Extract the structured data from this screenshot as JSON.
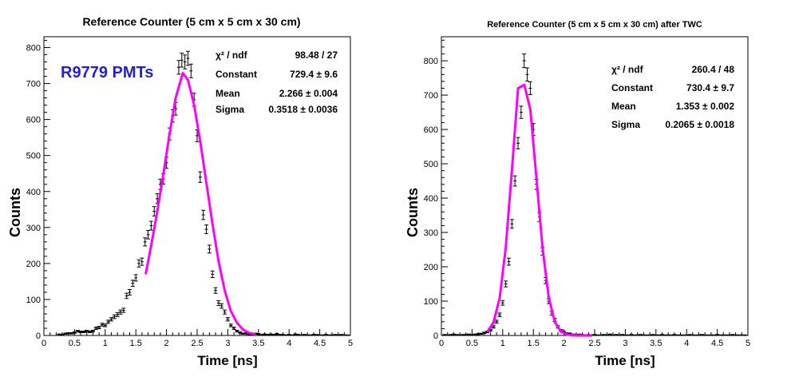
{
  "chart_data": [
    {
      "type": "scatter",
      "title": "Reference Counter (5 cm x 5 cm x 30 cm)",
      "annotation": "R9779 PMTs",
      "annotation_color": "#1f1fd6",
      "xlabel": "Time [ns]",
      "ylabel": "Counts",
      "xlim": [
        0,
        5
      ],
      "ylim": [
        0,
        830
      ],
      "x_ticks": [
        0,
        0.5,
        1,
        1.5,
        2,
        2.5,
        3,
        3.5,
        4,
        4.5,
        5
      ],
      "x_tick_labels": [
        "0",
        "0.5",
        "1",
        "1.5",
        "2",
        "2.5",
        "3",
        "3.5",
        "4",
        "4.5",
        "5"
      ],
      "y_ticks": [
        0,
        100,
        200,
        300,
        400,
        500,
        600,
        700,
        800
      ],
      "y_tick_labels": [
        "0",
        "100",
        "200",
        "300",
        "400",
        "500",
        "600",
        "700",
        "800"
      ],
      "stats": [
        {
          "label": "χ² / ndf",
          "value": "98.48 / 27"
        },
        {
          "label": "Constant",
          "value": "729.4 ± 9.6"
        },
        {
          "label": "Mean",
          "value": "2.266 ± 0.004"
        },
        {
          "label": "Sigma",
          "value": "0.3518 ± 0.0036"
        }
      ],
      "series": [
        {
          "kind": "histogram-points",
          "color": "#000000",
          "x": [
            0.25,
            0.3,
            0.35,
            0.4,
            0.45,
            0.5,
            0.55,
            0.6,
            0.65,
            0.7,
            0.75,
            0.8,
            0.85,
            0.9,
            0.95,
            1.0,
            1.05,
            1.1,
            1.15,
            1.2,
            1.25,
            1.3,
            1.35,
            1.4,
            1.45,
            1.5,
            1.55,
            1.6,
            1.65,
            1.7,
            1.75,
            1.8,
            1.85,
            1.9,
            1.95,
            2.0,
            2.05,
            2.1,
            2.15,
            2.2,
            2.25,
            2.3,
            2.35,
            2.4,
            2.45,
            2.5,
            2.55,
            2.6,
            2.65,
            2.7,
            2.75,
            2.8,
            2.85,
            2.9,
            2.95,
            3.0,
            3.05,
            3.1,
            3.15,
            3.2,
            3.25,
            3.3,
            3.35,
            3.4,
            3.45,
            3.5,
            3.55,
            3.6,
            3.65,
            3.7,
            3.75,
            3.8,
            3.85,
            3.9,
            3.95,
            4.0,
            4.05,
            4.1,
            4.15,
            4.2,
            4.25,
            4.3,
            4.35,
            4.4,
            4.45,
            4.5,
            4.55,
            4.6,
            4.65,
            4.7,
            4.75,
            4.8,
            4.85,
            4.9,
            4.95
          ],
          "y": [
            3,
            2,
            5,
            6,
            6,
            8,
            12,
            10,
            10,
            12,
            10,
            12,
            20,
            22,
            30,
            28,
            38,
            45,
            52,
            58,
            65,
            70,
            110,
            120,
            145,
            160,
            200,
            205,
            260,
            280,
            305,
            345,
            380,
            420,
            435,
            480,
            560,
            610,
            630,
            745,
            765,
            760,
            770,
            735,
            655,
            555,
            440,
            335,
            295,
            240,
            170,
            125,
            90,
            82,
            65,
            45,
            28,
            20,
            12,
            8,
            5,
            6,
            3,
            2,
            5,
            4,
            2,
            3,
            2,
            3,
            2,
            4,
            2,
            2,
            1,
            2,
            1,
            3,
            2,
            1,
            2,
            1,
            1,
            2,
            2,
            1,
            1,
            2,
            1,
            1,
            2,
            1,
            2,
            1,
            1
          ]
        },
        {
          "kind": "gaussian-fit",
          "color": "#ff00ff",
          "x": [
            1.66,
            1.75,
            1.85,
            1.95,
            2.05,
            2.15,
            2.266,
            2.35,
            2.45,
            2.55,
            2.65,
            2.75,
            2.85,
            2.95,
            3.05,
            3.15,
            3.25,
            3.35,
            3.45
          ],
          "y": [
            170,
            250,
            345,
            450,
            560,
            660,
            729,
            710,
            640,
            540,
            425,
            310,
            205,
            124,
            68,
            35,
            16,
            7,
            3
          ]
        }
      ]
    },
    {
      "type": "scatter",
      "title": "Reference Counter (5 cm x 5 cm x 30 cm) after TWC",
      "xlabel": "Time [ns]",
      "ylabel": "Counts",
      "xlim": [
        0,
        5
      ],
      "ylim": [
        0,
        870
      ],
      "x_ticks": [
        0,
        0.5,
        1,
        1.5,
        2,
        2.5,
        3,
        3.5,
        4,
        4.5,
        5
      ],
      "x_tick_labels": [
        "0",
        "0.5",
        "1",
        "1.5",
        "2",
        "2.5",
        "3",
        "3.5",
        "4",
        "4.5",
        "5"
      ],
      "y_ticks": [
        0,
        100,
        200,
        300,
        400,
        500,
        600,
        700,
        800
      ],
      "y_tick_labels": [
        "0",
        "100",
        "200",
        "300",
        "400",
        "500",
        "600",
        "700",
        "800"
      ],
      "stats": [
        {
          "label": "χ² / ndf",
          "value": "260.4 / 48"
        },
        {
          "label": "Constant",
          "value": "730.4 ± 9.7"
        },
        {
          "label": "Mean",
          "value": "1.353 ± 0.002"
        },
        {
          "label": "Sigma",
          "value": "0.2065 ± 0.0018"
        }
      ],
      "series": [
        {
          "kind": "histogram-points",
          "color": "#000000",
          "x": [
            0.05,
            0.1,
            0.15,
            0.2,
            0.25,
            0.3,
            0.35,
            0.4,
            0.45,
            0.5,
            0.55,
            0.6,
            0.65,
            0.7,
            0.75,
            0.8,
            0.85,
            0.9,
            0.95,
            1.0,
            1.05,
            1.1,
            1.15,
            1.2,
            1.25,
            1.3,
            1.35,
            1.4,
            1.45,
            1.5,
            1.55,
            1.6,
            1.65,
            1.7,
            1.75,
            1.8,
            1.85,
            1.9,
            1.95,
            2.0,
            2.05,
            2.1,
            2.15,
            2.2,
            2.25,
            2.3,
            2.35,
            2.4,
            2.45,
            2.5,
            2.55,
            2.6,
            2.65,
            2.7,
            2.75,
            2.8,
            2.85,
            2.9,
            2.95,
            3.0,
            3.05,
            3.1,
            3.15,
            3.2,
            3.25,
            3.3,
            3.35,
            3.4,
            3.45,
            3.5,
            3.55,
            3.6,
            3.65,
            3.7,
            3.75,
            3.8,
            3.85,
            3.9,
            3.95,
            4.0,
            4.05,
            4.1,
            4.15,
            4.2,
            4.25,
            4.3,
            4.35,
            4.4,
            4.45,
            4.5,
            4.55,
            4.6,
            4.65,
            4.7,
            4.75,
            4.8,
            4.85,
            4.9,
            4.95
          ],
          "y": [
            2,
            1,
            2,
            3,
            2,
            1,
            2,
            2,
            3,
            2,
            3,
            4,
            5,
            8,
            10,
            15,
            25,
            40,
            60,
            95,
            150,
            215,
            325,
            450,
            560,
            650,
            800,
            760,
            720,
            600,
            440,
            345,
            245,
            160,
            100,
            65,
            45,
            25,
            15,
            10,
            6,
            5,
            3,
            2,
            3,
            2,
            1,
            2,
            1,
            2,
            1,
            1,
            2,
            1,
            3,
            1,
            2,
            1,
            2,
            1,
            1,
            2,
            1,
            1,
            2,
            1,
            1,
            1,
            2,
            1,
            1,
            2,
            1,
            1,
            1,
            2,
            1,
            1,
            1,
            1,
            2,
            1,
            1,
            1,
            2,
            1,
            1,
            1,
            1,
            2,
            1,
            1,
            1,
            1,
            2,
            1,
            1,
            1,
            1
          ]
        },
        {
          "kind": "gaussian-fit",
          "color": "#ff00ff",
          "x": [
            0.75,
            0.85,
            0.95,
            1.05,
            1.15,
            1.25,
            1.353,
            1.45,
            1.55,
            1.65,
            1.75,
            1.85,
            1.95,
            2.05,
            2.15,
            2.25,
            2.35,
            2.45
          ],
          "y": [
            11,
            38,
            109,
            256,
            480,
            720,
            730,
            658,
            460,
            255,
            112,
            39,
            11,
            2.5,
            0.5,
            0.1,
            0,
            0
          ]
        }
      ]
    }
  ]
}
